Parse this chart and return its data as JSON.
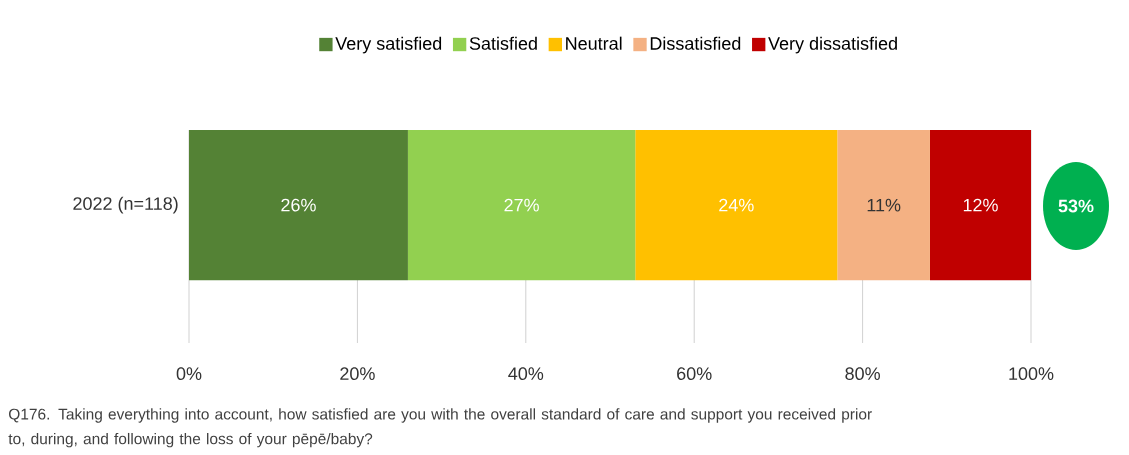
{
  "chart_data": {
    "type": "bar",
    "orientation": "horizontal",
    "stacked": true,
    "categories": [
      "2022 (n=118)"
    ],
    "series": [
      {
        "name": "Very satisfied",
        "color": "#548235",
        "values": [
          26
        ],
        "value_labels": [
          "26%"
        ]
      },
      {
        "name": "Satisfied",
        "color": "#92d050",
        "values": [
          27
        ],
        "value_labels": [
          "27%"
        ]
      },
      {
        "name": "Neutral",
        "color": "#ffc000",
        "values": [
          24
        ],
        "value_labels": [
          "24%"
        ]
      },
      {
        "name": "Dissatisfied",
        "color": "#f4b183",
        "values": [
          11
        ],
        "value_labels": [
          "11%"
        ]
      },
      {
        "name": "Very dissatisfied",
        "color": "#c00000",
        "values": [
          12
        ],
        "value_labels": [
          "12%"
        ]
      }
    ],
    "xlim": [
      0,
      100
    ],
    "xticks": [
      {
        "value": 0,
        "label": "0%"
      },
      {
        "value": 20,
        "label": "20%"
      },
      {
        "value": 40,
        "label": "40%"
      },
      {
        "value": 60,
        "label": "60%"
      },
      {
        "value": 80,
        "label": "80%"
      },
      {
        "value": 100,
        "label": "100%"
      }
    ],
    "grid": "x",
    "legend": "top",
    "annotations": [
      "53%",
      "Q176. Taking everything into account, how satisfied are you with the overall standard of care and support you received prior to, during, and following the loss of your pēpē/baby?"
    ]
  }
}
